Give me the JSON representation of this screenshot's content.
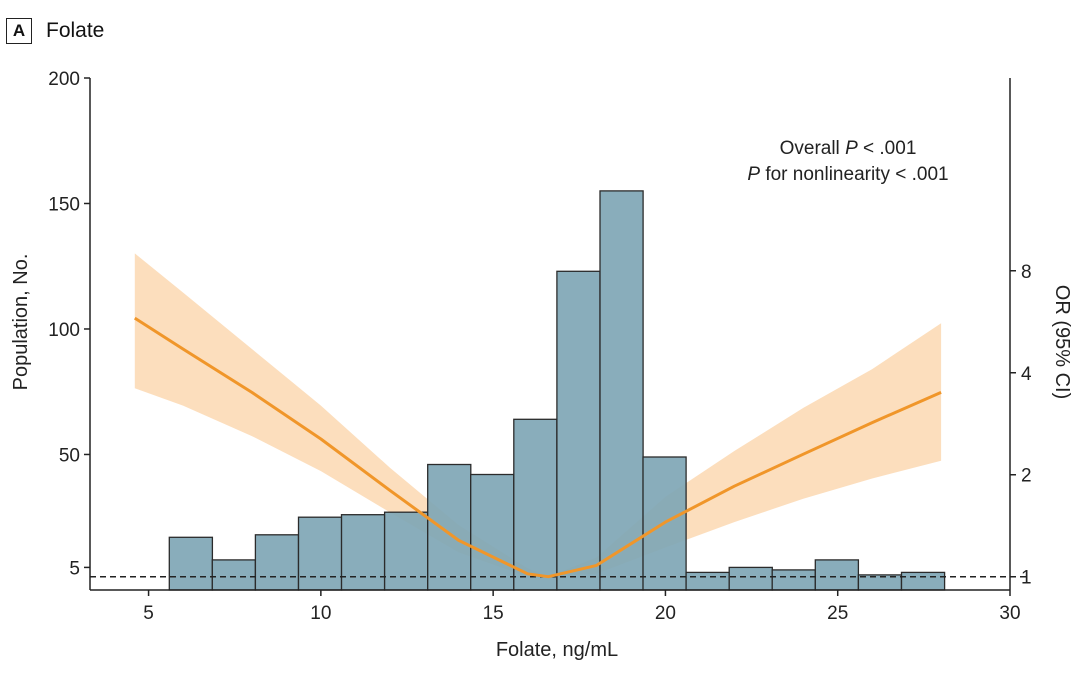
{
  "panel": {
    "label": "A",
    "title": "Folate"
  },
  "chart_data": {
    "type": "bar",
    "title": "Folate",
    "xlabel": "Folate, ng/mL",
    "ylabel": "Population, No.",
    "y2label": "OR (95% CI)",
    "xlim": [
      3.3,
      30
    ],
    "ylim": [
      -4,
      200
    ],
    "xticks": [
      5,
      10,
      15,
      20,
      25,
      30
    ],
    "yticks": [
      5,
      50,
      100,
      150,
      200
    ],
    "y2ticks": [
      1,
      2,
      4,
      8
    ],
    "y2_log2_range": [
      -0.13,
      4.89
    ],
    "histogram": {
      "bin_edges": [
        5.6,
        6.85,
        8.1,
        9.35,
        10.6,
        11.85,
        13.1,
        14.35,
        15.6,
        16.85,
        18.1,
        19.35,
        20.6,
        21.85,
        23.1,
        24.35,
        25.6,
        26.85,
        28.1
      ],
      "counts": [
        17,
        8,
        18,
        25,
        26,
        27,
        46,
        42,
        64,
        123,
        155,
        49,
        3,
        5,
        4,
        8,
        2,
        3
      ]
    },
    "or_curve": {
      "x": [
        4.6,
        6,
        8,
        10,
        12,
        14,
        16,
        16.6,
        18,
        20,
        22,
        24,
        26,
        28
      ],
      "or": [
        5.8,
        4.7,
        3.5,
        2.55,
        1.8,
        1.28,
        1.02,
        1.0,
        1.08,
        1.45,
        1.85,
        2.3,
        2.85,
        3.5
      ],
      "lower": [
        3.6,
        3.2,
        2.6,
        2.05,
        1.55,
        1.18,
        1.0,
        1.0,
        1.02,
        1.22,
        1.45,
        1.7,
        1.95,
        2.2
      ],
      "upper": [
        9.0,
        6.9,
        4.7,
        3.2,
        2.1,
        1.42,
        1.06,
        1.0,
        1.14,
        1.72,
        2.35,
        3.15,
        4.1,
        5.6
      ]
    },
    "reference_line": {
      "or": 1,
      "style": "dashed"
    },
    "annotation": {
      "line1_prefix": "Overall ",
      "line1_italic": "P",
      "line1_suffix": " < .001",
      "line2_italic": "P",
      "line2_suffix": " for nonlinearity < .001"
    },
    "colors": {
      "bar_fill": "#7fa6b5",
      "bar_stroke": "#2b2b2b",
      "curve": "#f0962a",
      "band": "#fbd8b2"
    }
  }
}
